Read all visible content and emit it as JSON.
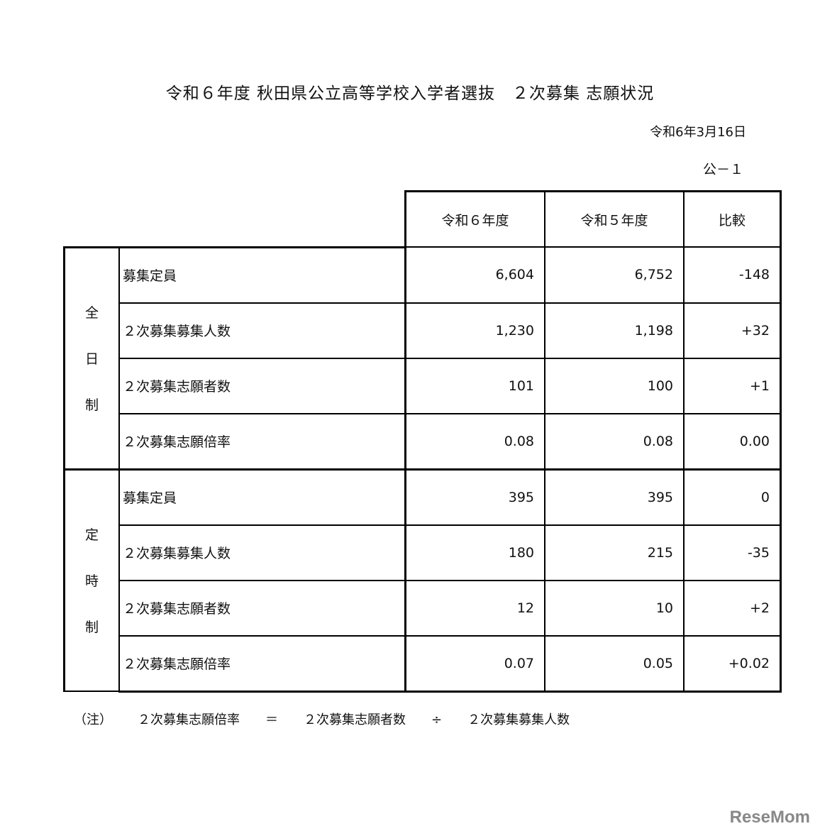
{
  "title": "令和６年度 秋田県公立高等学校入学者選抜　２次募集 志願状況",
  "date": "令和6年3月16日",
  "doc_no": "公－１",
  "columns": [
    "令和６年度",
    "令和５年度",
    "比較"
  ],
  "groups": [
    {
      "label": [
        "全",
        "日",
        "制"
      ],
      "rows": [
        {
          "item": "募集定員",
          "r6": "6,604",
          "r5": "6,752",
          "diff": "-148"
        },
        {
          "item": "２次募集募集人数",
          "r6": "1,230",
          "r5": "1,198",
          "diff": "+32"
        },
        {
          "item": "２次募集志願者数",
          "r6": "101",
          "r5": "100",
          "diff": "+1"
        },
        {
          "item": "２次募集志願倍率",
          "r6": "0.08",
          "r5": "0.08",
          "diff": "0.00"
        }
      ]
    },
    {
      "label": [
        "定",
        "時",
        "制"
      ],
      "rows": [
        {
          "item": "募集定員",
          "r6": "395",
          "r5": "395",
          "diff": "0"
        },
        {
          "item": "２次募集募集人数",
          "r6": "180",
          "r5": "215",
          "diff": "-35"
        },
        {
          "item": "２次募集志願者数",
          "r6": "12",
          "r5": "10",
          "diff": "+2"
        },
        {
          "item": "２次募集志願倍率",
          "r6": "0.07",
          "r5": "0.05",
          "diff": "+0.02"
        }
      ]
    }
  ],
  "note": {
    "prefix": "（注）",
    "lhs": "２次募集志願倍率",
    "eq": "＝",
    "a": "２次募集志願者数",
    "op": "÷",
    "b": "２次募集募集人数"
  },
  "watermark": "ReseMom"
}
